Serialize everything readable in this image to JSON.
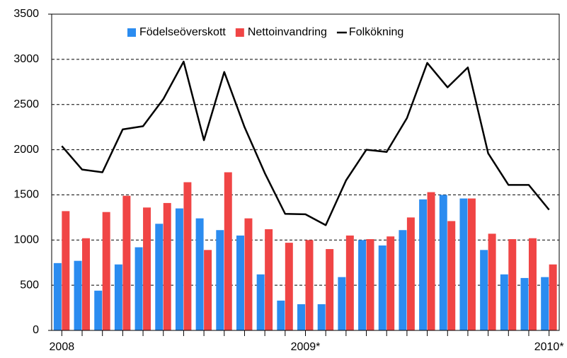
{
  "chart_data": {
    "type": "bar",
    "categories": [
      "2008",
      null,
      null,
      null,
      null,
      null,
      null,
      null,
      null,
      null,
      null,
      null,
      "2009*",
      null,
      null,
      null,
      null,
      null,
      null,
      null,
      null,
      null,
      null,
      null,
      "2010*"
    ],
    "series": [
      {
        "name": "Födelseöverskott",
        "color": "#2b8cf0",
        "type": "bar",
        "values": [
          745,
          770,
          440,
          730,
          920,
          1180,
          1350,
          1240,
          1110,
          1050,
          620,
          330,
          290,
          290,
          590,
          1000,
          940,
          1110,
          1450,
          1500,
          1460,
          890,
          620,
          580,
          590
        ]
      },
      {
        "name": "Nettoinvandring",
        "color": "#f04545",
        "type": "bar",
        "values": [
          1320,
          1020,
          1310,
          1490,
          1360,
          1410,
          1640,
          890,
          1750,
          1240,
          1120,
          970,
          1000,
          900,
          1050,
          1010,
          1040,
          1250,
          1530,
          1210,
          1460,
          1070,
          1010,
          1020,
          730
        ]
      },
      {
        "name": "Folkökning",
        "color": "#000000",
        "type": "line",
        "values": [
          2040,
          1780,
          1750,
          2225,
          2260,
          2560,
          2975,
          2105,
          2860,
          2250,
          1740,
          1290,
          1285,
          1165,
          1660,
          2000,
          1975,
          2350,
          2960,
          2690,
          2910,
          1960,
          1610,
          1610,
          1335
        ]
      }
    ],
    "ylim": [
      0,
      3500
    ],
    "yticks": [
      0,
      500,
      1000,
      1500,
      2000,
      2500,
      3000,
      3500
    ],
    "grid": true,
    "legend": "top"
  }
}
